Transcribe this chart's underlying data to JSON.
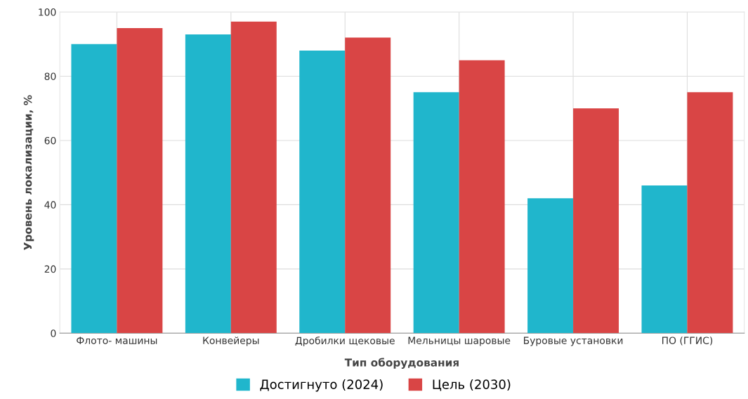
{
  "chart_data": {
    "type": "bar",
    "xlabel": "Тип оборудования",
    "ylabel": "Уровень локализации, %",
    "categories": [
      "Флото- машины",
      "Конвейеры",
      "Дробилки щековые",
      "Мельницы шаровые",
      "Буровые установки",
      "ПО (ГГИС)"
    ],
    "series": [
      {
        "name": "Достигнуто (2024)",
        "color": "#20b6cc",
        "values": [
          90,
          93,
          88,
          75,
          42,
          46
        ]
      },
      {
        "name": "Цель (2030)",
        "color": "#d94545",
        "values": [
          95,
          97,
          92,
          85,
          70,
          75
        ]
      }
    ],
    "ylim": [
      0,
      100
    ],
    "yticks": [
      0,
      20,
      40,
      60,
      80,
      100
    ],
    "grid": true,
    "legend": "bottom"
  }
}
